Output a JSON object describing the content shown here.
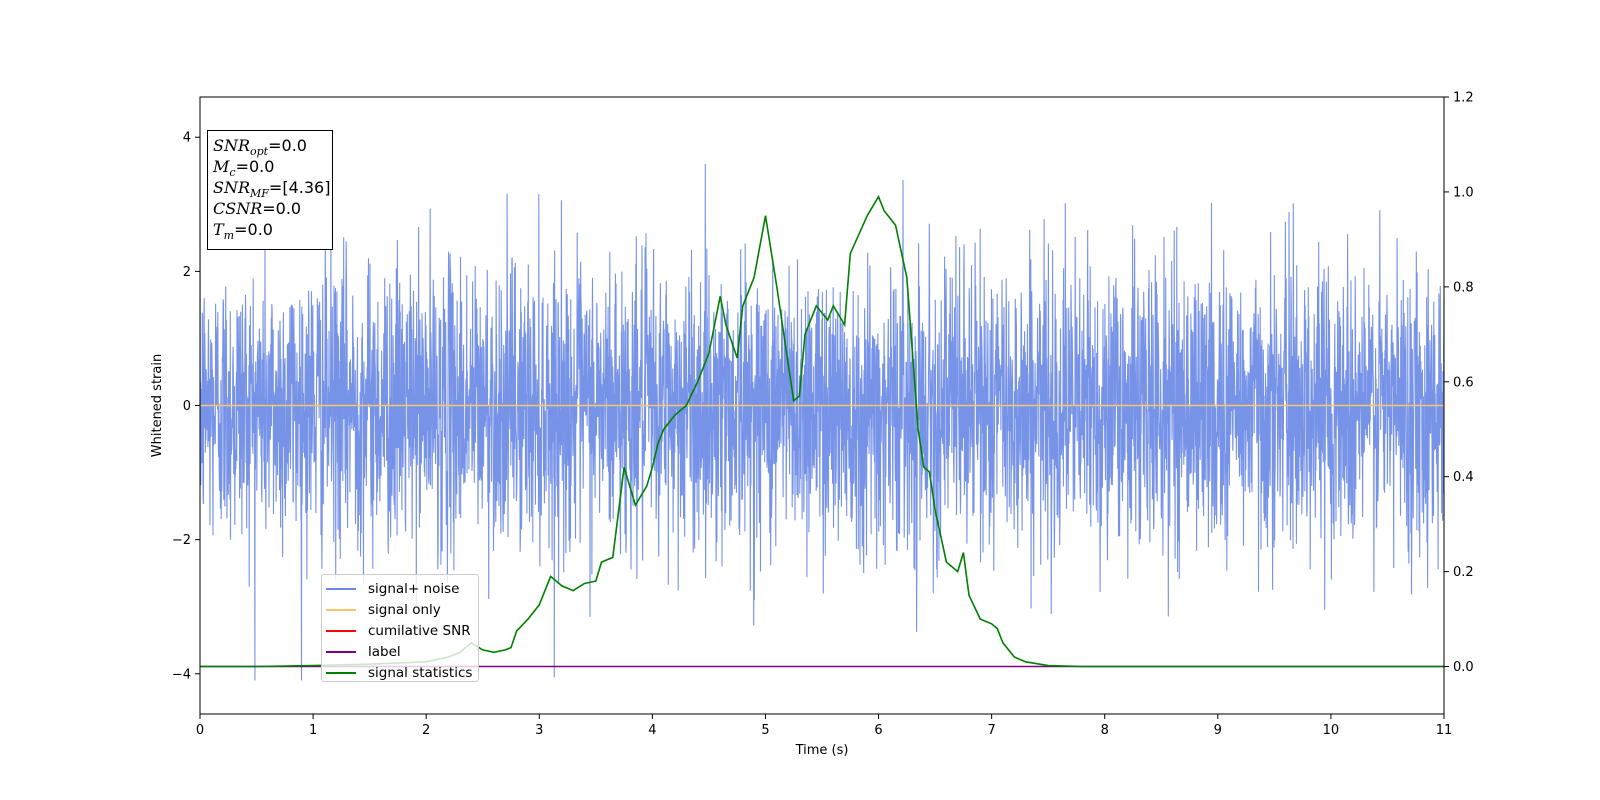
{
  "chart_data": {
    "type": "line",
    "xlabel": "Time (s)",
    "ylabel_left": "Whitened strain",
    "ylabel_right": "",
    "xlim": [
      0,
      11
    ],
    "ylim_left": [
      -4.6,
      4.6
    ],
    "ylim_right": [
      -0.1,
      1.2
    ],
    "xticks": [
      "0",
      "1",
      "2",
      "3",
      "4",
      "5",
      "6",
      "7",
      "8",
      "9",
      "10",
      "11"
    ],
    "yticks_left": [
      "−4",
      "−2",
      "0",
      "2",
      "4"
    ],
    "yticks_left_values": [
      -4,
      -2,
      0,
      2,
      4
    ],
    "yticks_right": [
      "0.0",
      "0.2",
      "0.4",
      "0.6",
      "0.8",
      "1.0",
      "1.2"
    ],
    "yticks_right_values": [
      0.0,
      0.2,
      0.4,
      0.6,
      0.8,
      1.0,
      1.2
    ],
    "grid": false,
    "legend_position": "lower-left",
    "legend": [
      {
        "name": "signal+ noise",
        "color": "#6b8ae6"
      },
      {
        "name": "signal only",
        "color": "#f5c56b"
      },
      {
        "name": "cumilative SNR",
        "color": "#ff0000"
      },
      {
        "name": "label",
        "color": "#800080"
      },
      {
        "name": "signal statistics",
        "color": "#008000"
      }
    ],
    "annotations": [
      {
        "var": "SNR",
        "sub": "opt",
        "value": "=0.0"
      },
      {
        "var": "M",
        "sub": "c",
        "value": "=0.0"
      },
      {
        "var": "SNR",
        "sub": "MF",
        "value": "=[4.36]"
      },
      {
        "var": "CSNR",
        "sub": "",
        "value": "=0.0"
      },
      {
        "var": "T",
        "sub": "m",
        "value": "=0.0"
      }
    ],
    "series": [
      {
        "name": "signal+ noise",
        "axis": "left",
        "description": "whitened noise, approx. range -4.1 to 4.2, dense",
        "color": "#6b8ae6"
      },
      {
        "name": "signal only",
        "axis": "left",
        "x": [
          0,
          11
        ],
        "y": [
          0,
          0
        ],
        "color": "#f5c56b"
      },
      {
        "name": "label",
        "axis": "right",
        "x": [
          0,
          11
        ],
        "y": [
          0,
          0
        ],
        "color": "#800080"
      },
      {
        "name": "signal statistics",
        "axis": "right",
        "color": "#008000",
        "x": [
          0,
          0.5,
          1,
          1.5,
          2,
          2.1,
          2.2,
          2.3,
          2.4,
          2.5,
          2.6,
          2.7,
          2.75,
          2.8,
          2.9,
          3.0,
          3.1,
          3.2,
          3.3,
          3.4,
          3.5,
          3.55,
          3.65,
          3.75,
          3.85,
          3.95,
          4.0,
          4.05,
          4.1,
          4.2,
          4.3,
          4.4,
          4.5,
          4.6,
          4.65,
          4.75,
          4.8,
          4.9,
          5.0,
          5.1,
          5.15,
          5.25,
          5.3,
          5.35,
          5.45,
          5.55,
          5.6,
          5.7,
          5.75,
          5.9,
          6.0,
          6.05,
          6.15,
          6.25,
          6.3,
          6.35,
          6.4,
          6.45,
          6.5,
          6.6,
          6.7,
          6.75,
          6.8,
          6.9,
          7.0,
          7.05,
          7.1,
          7.2,
          7.3,
          7.5,
          7.8,
          8,
          9,
          10,
          11
        ],
        "y": [
          0.0,
          0.0,
          0.002,
          0.005,
          0.01,
          0.015,
          0.02,
          0.03,
          0.05,
          0.035,
          0.03,
          0.035,
          0.04,
          0.075,
          0.1,
          0.13,
          0.19,
          0.17,
          0.16,
          0.175,
          0.18,
          0.22,
          0.23,
          0.42,
          0.34,
          0.38,
          0.42,
          0.47,
          0.5,
          0.53,
          0.55,
          0.6,
          0.66,
          0.78,
          0.72,
          0.65,
          0.76,
          0.82,
          0.95,
          0.8,
          0.72,
          0.56,
          0.57,
          0.7,
          0.76,
          0.73,
          0.76,
          0.72,
          0.87,
          0.95,
          0.99,
          0.96,
          0.93,
          0.82,
          0.66,
          0.5,
          0.42,
          0.41,
          0.33,
          0.22,
          0.2,
          0.24,
          0.15,
          0.1,
          0.09,
          0.08,
          0.05,
          0.02,
          0.01,
          0.002,
          0.0,
          0.0,
          0.0,
          0.0,
          0.0
        ]
      }
    ]
  }
}
